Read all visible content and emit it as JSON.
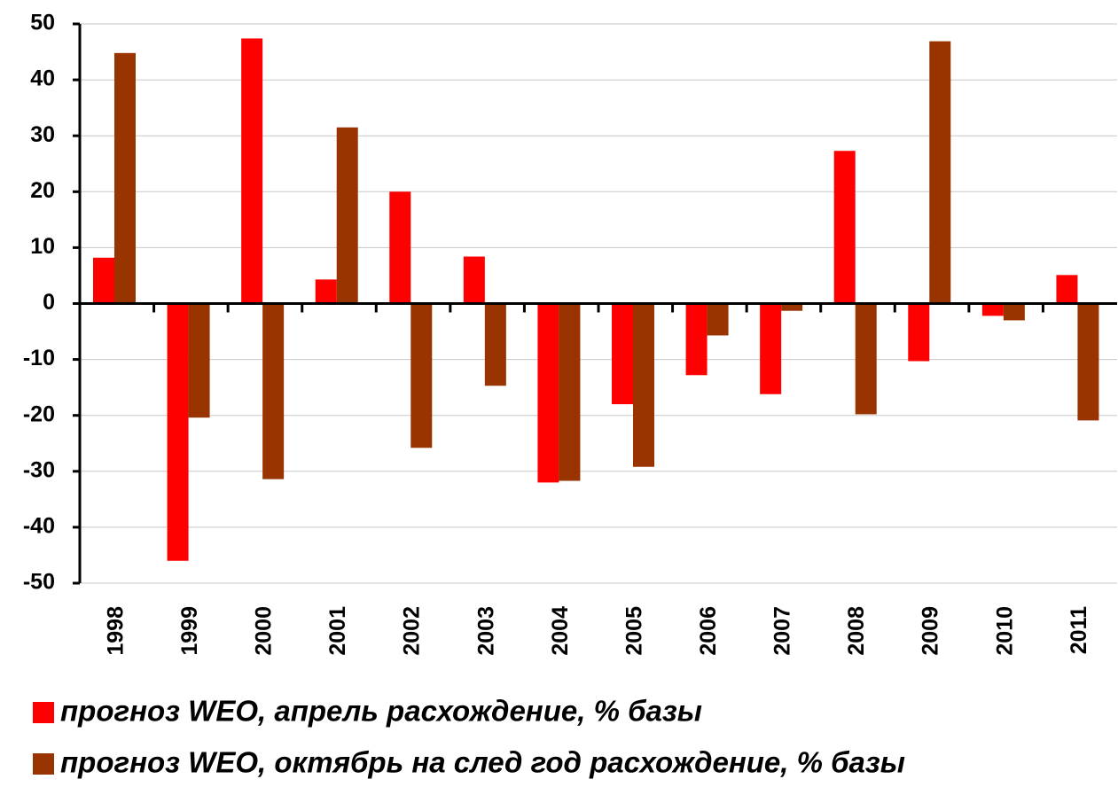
{
  "chart_data": {
    "type": "bar",
    "categories": [
      "1998",
      "1999",
      "2000",
      "2001",
      "2002",
      "2003",
      "2004",
      "2005",
      "2006",
      "2007",
      "2008",
      "2009",
      "2010",
      "2011"
    ],
    "series": [
      {
        "name": "прогноз WEO, апрель расхождение, % базы",
        "color": "#ff0000",
        "values": [
          8.2,
          -46,
          47.4,
          4.3,
          20,
          8.4,
          -32,
          -18,
          -12.8,
          -16.2,
          27.3,
          -10.3,
          -2.2,
          5.1
        ]
      },
      {
        "name": "прогноз WEO, октябрь на след год расхождение, % базы",
        "color": "#993300",
        "values": [
          44.8,
          -20.4,
          -31.4,
          31.5,
          -25.8,
          -14.7,
          -31.7,
          -29.2,
          -5.7,
          -1.3,
          -19.8,
          46.9,
          -3,
          -20.9
        ]
      }
    ],
    "ylim": [
      -50,
      50
    ],
    "yticks": [
      -50,
      -40,
      -30,
      -20,
      -10,
      0,
      10,
      20,
      30,
      40,
      50
    ],
    "grid": true
  }
}
